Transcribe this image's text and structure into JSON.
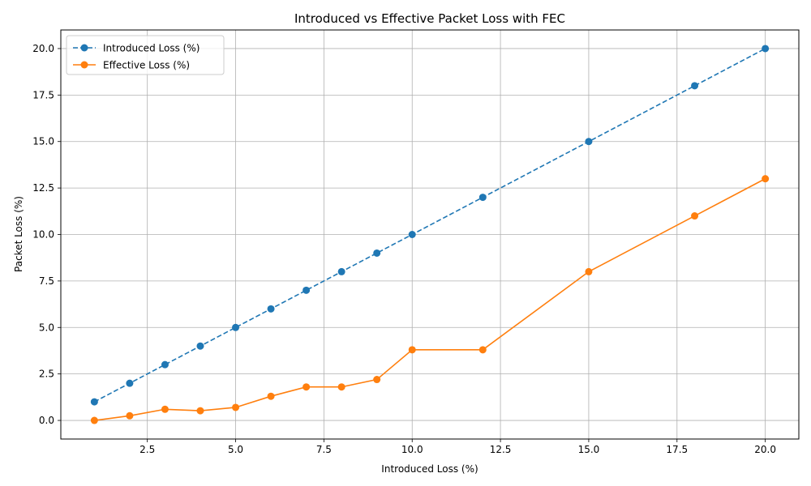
{
  "chart_data": {
    "type": "line",
    "title": "Introduced vs Effective Packet Loss with FEC",
    "xlabel": "Introduced Loss (%)",
    "ylabel": "Packet Loss (%)",
    "xlim": [
      0.05,
      20.95
    ],
    "ylim": [
      -1.0,
      21.0
    ],
    "xticks": [
      2.5,
      5.0,
      7.5,
      10.0,
      12.5,
      15.0,
      17.5,
      20.0
    ],
    "xtick_labels": [
      "2.5",
      "5.0",
      "7.5",
      "10.0",
      "12.5",
      "15.0",
      "17.5",
      "20.0"
    ],
    "yticks": [
      0.0,
      2.5,
      5.0,
      7.5,
      10.0,
      12.5,
      15.0,
      17.5,
      20.0
    ],
    "ytick_labels": [
      "0.0",
      "2.5",
      "5.0",
      "7.5",
      "10.0",
      "12.5",
      "15.0",
      "17.5",
      "20.0"
    ],
    "grid": true,
    "legend_position": "top-left",
    "x": [
      1,
      2,
      3,
      4,
      5,
      6,
      7,
      8,
      9,
      10,
      12,
      15,
      18,
      20
    ],
    "series": [
      {
        "name": "Introduced Loss (%)",
        "color": "#1f77b4",
        "linestyle": "dashed",
        "marker": "circle",
        "values": [
          1,
          2,
          3,
          4,
          5,
          6,
          7,
          8,
          9,
          10,
          12,
          15,
          18,
          20
        ]
      },
      {
        "name": "Effective Loss (%)",
        "color": "#ff7f0e",
        "linestyle": "solid",
        "marker": "circle",
        "values": [
          0.0,
          0.25,
          0.6,
          0.52,
          0.7,
          1.3,
          1.8,
          1.8,
          2.2,
          3.8,
          3.8,
          8.0,
          11.0,
          13.0
        ]
      }
    ]
  }
}
